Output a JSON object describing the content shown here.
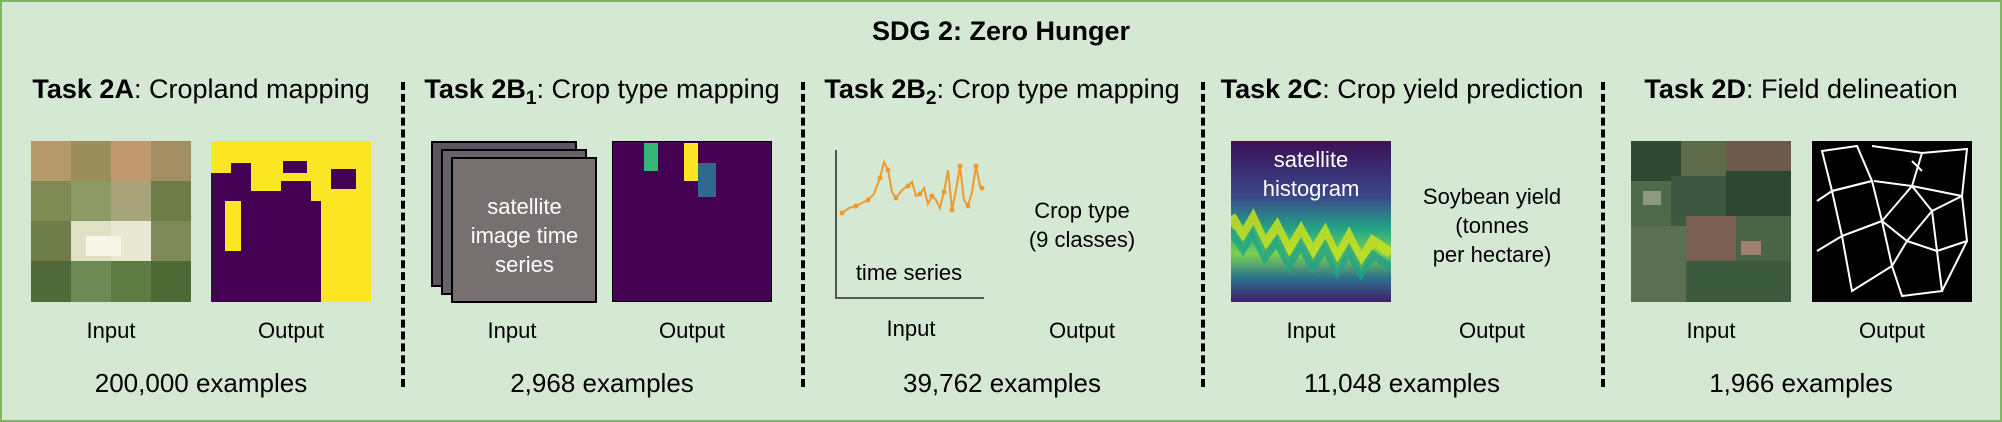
{
  "title": "SDG 2: Zero Hunger",
  "colors": {
    "background": "#d5e8d4",
    "border": "#82b366",
    "viridis_dark": "#440154",
    "viridis_yellow": "#fde725",
    "series_orange": "#f09a2b"
  },
  "panels": [
    {
      "id": "2A",
      "task_bold": "Task 2A",
      "task_sub": "",
      "task_text": ": Cropland mapping",
      "input_label": "Input",
      "output_label": "Output",
      "examples": "200,000 examples"
    },
    {
      "id": "2B1",
      "task_bold": "Task 2B",
      "task_sub": "1",
      "task_text": ": Crop type mapping",
      "input_label": "Input",
      "output_label": "Output",
      "examples": "2,968 examples",
      "input_overlay": [
        "satellite",
        "image time",
        "series"
      ]
    },
    {
      "id": "2B2",
      "task_bold": "Task 2B",
      "task_sub": "2",
      "task_text": ": Crop type mapping",
      "input_label": "Input",
      "output_label": "Output",
      "examples": "39,762 examples",
      "input_caption": "time series",
      "output_text": [
        "Crop type",
        "(9 classes)"
      ]
    },
    {
      "id": "2C",
      "task_bold": "Task 2C",
      "task_sub": "",
      "task_text": ": Crop yield prediction",
      "input_label": "Input",
      "output_label": "Output",
      "examples": "11,048 examples",
      "input_overlay": [
        "satellite",
        "histogram"
      ],
      "output_text": [
        "Soybean yield",
        "(tonnes",
        "per hectare)"
      ]
    },
    {
      "id": "2D",
      "task_bold": "Task 2D",
      "task_sub": "",
      "task_text": ": Field delineation",
      "input_label": "Input",
      "output_label": "Output",
      "examples": "1,966 examples"
    }
  ]
}
